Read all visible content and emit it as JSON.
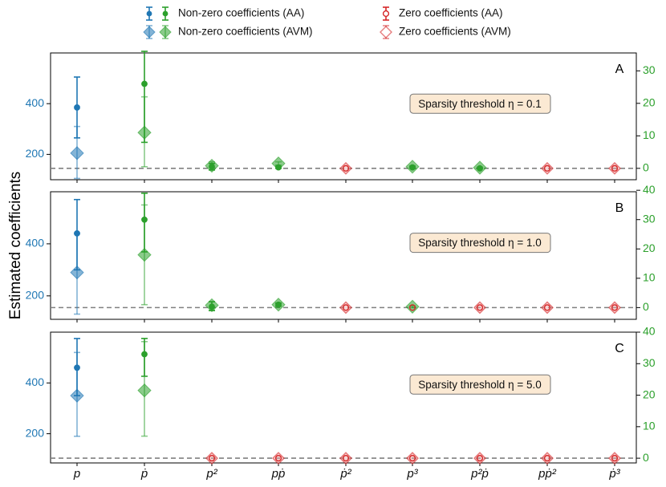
{
  "legend": [
    {
      "label": "Non-zero coefficients (AA)",
      "marker": "circle",
      "colors": [
        "#1f77b4",
        "#2ca02c"
      ],
      "alpha": 1.0
    },
    {
      "label": "Non-zero coefficients (AVM)",
      "marker": "diamond",
      "colors": [
        "#1f77b4",
        "#2ca02c"
      ],
      "alpha": 0.55
    },
    {
      "label": "Zero coefficients (AA)",
      "marker": "open-circle",
      "colors": [
        "#d62728"
      ],
      "alpha": 1.0
    },
    {
      "label": "Zero coefficients (AVM)",
      "marker": "open-diamond",
      "colors": [
        "#d62728"
      ],
      "alpha": 0.55
    }
  ],
  "colors": {
    "left_axis": "#1f77b4",
    "right_axis": "#2ca02c",
    "zero": "#d62728",
    "baseline": "#808080"
  },
  "chart_data": {
    "type": "scatter",
    "ylabel": "Estimated coefficients",
    "categories": [
      "p",
      "ṗ",
      "p²",
      "pṗ",
      "ṗ²",
      "p³",
      "p²ṗ",
      "pṗ²",
      "ṗ³"
    ],
    "category_parts": [
      {
        "base": "p",
        "dot": false,
        "sup": ""
      },
      {
        "base": "p",
        "dot": true,
        "sup": ""
      },
      {
        "base": "p",
        "dot": false,
        "sup": "2"
      },
      {
        "base": "pp",
        "dot": true,
        "sup": ""
      },
      {
        "base": "p",
        "dot": true,
        "sup": "2"
      },
      {
        "base": "p",
        "dot": false,
        "sup": "3"
      },
      {
        "base": "p2p",
        "dot": true,
        "sup": ""
      },
      {
        "base": "pp2",
        "dot": true,
        "sup": ""
      },
      {
        "base": "p",
        "dot": true,
        "sup": "3"
      }
    ],
    "left_axis_categories": [
      "p"
    ],
    "panels": [
      {
        "letter": "A",
        "annotation": "Sparsity threshold η = 0.1",
        "left_ylim": [
          100,
          600
        ],
        "left_ticks": [
          200,
          400
        ],
        "right_ylim": [
          -3.5,
          35.5
        ],
        "right_ticks": [
          0,
          10,
          20,
          30
        ],
        "AA": [
          {
            "v": 385,
            "lo": 265,
            "hi": 505
          },
          {
            "v": 26,
            "lo": 8,
            "hi": 36
          },
          {
            "v": 0.5,
            "lo": -0.5,
            "hi": 1.5
          },
          {
            "v": 0.3,
            "lo": 0,
            "hi": 0.6
          },
          {
            "v": 0,
            "lo": 0,
            "hi": 0,
            "zero": true
          },
          {
            "v": 0.3,
            "lo": 0,
            "hi": 0.6
          },
          {
            "v": 0,
            "lo": 0,
            "hi": 0
          },
          {
            "v": 0,
            "lo": 0,
            "hi": 0,
            "zero": true
          },
          {
            "v": 0,
            "lo": 0,
            "hi": 0,
            "zero": true
          }
        ],
        "AVM": [
          {
            "v": 205,
            "lo": 105,
            "hi": 310
          },
          {
            "v": 11,
            "lo": 0.5,
            "hi": 22
          },
          {
            "v": 0.8,
            "lo": -0.5,
            "hi": 2
          },
          {
            "v": 1.5,
            "lo": 1,
            "hi": 2
          },
          {
            "v": 0,
            "lo": 0,
            "hi": 0,
            "zero": true
          },
          {
            "v": 0.5,
            "lo": 0.2,
            "hi": 0.8
          },
          {
            "v": 0.2,
            "lo": 0,
            "hi": 0.4
          },
          {
            "v": 0,
            "lo": 0,
            "hi": 0,
            "zero": true
          },
          {
            "v": 0,
            "lo": 0,
            "hi": 0,
            "zero": true
          }
        ]
      },
      {
        "letter": "B",
        "annotation": "Sparsity threshold η = 1.0",
        "left_ylim": [
          110,
          600
        ],
        "left_ticks": [
          200,
          400
        ],
        "right_ylim": [
          -4,
          39.5
        ],
        "right_ticks": [
          0,
          10,
          20,
          30,
          40
        ],
        "AA": [
          {
            "v": 440,
            "lo": 300,
            "hi": 570
          },
          {
            "v": 30,
            "lo": 19,
            "hi": 39
          },
          {
            "v": 0.3,
            "lo": -1,
            "hi": 2
          },
          {
            "v": 1,
            "lo": 0.5,
            "hi": 1.5
          },
          {
            "v": 0,
            "lo": 0,
            "hi": 0,
            "zero": true
          },
          {
            "v": 0,
            "lo": 0,
            "hi": 0,
            "zero": true
          },
          {
            "v": 0,
            "lo": 0,
            "hi": 0,
            "zero": true
          },
          {
            "v": 0,
            "lo": 0,
            "hi": 0,
            "zero": true
          },
          {
            "v": 0,
            "lo": 0,
            "hi": 0,
            "zero": true
          }
        ],
        "AVM": [
          {
            "v": 290,
            "lo": 130,
            "hi": 440
          },
          {
            "v": 18,
            "lo": 1,
            "hi": 35
          },
          {
            "v": 0.8,
            "lo": -1,
            "hi": 2
          },
          {
            "v": 1,
            "lo": 0.5,
            "hi": 1.6
          },
          {
            "v": 0,
            "lo": 0,
            "hi": 0,
            "zero": true
          },
          {
            "v": 0.3,
            "lo": 0,
            "hi": 0.6
          },
          {
            "v": 0,
            "lo": 0,
            "hi": 0,
            "zero": true
          },
          {
            "v": 0,
            "lo": 0,
            "hi": 0,
            "zero": true
          },
          {
            "v": 0,
            "lo": 0,
            "hi": 0,
            "zero": true
          }
        ]
      },
      {
        "letter": "C",
        "annotation": "Sparsity threshold η = 5.0",
        "left_ylim": [
          85,
          600
        ],
        "left_ticks": [
          200,
          400
        ],
        "right_ylim": [
          -1.5,
          40
        ],
        "right_ticks": [
          0,
          10,
          20,
          30,
          40
        ],
        "AA": [
          {
            "v": 460,
            "lo": 350,
            "hi": 575
          },
          {
            "v": 33,
            "lo": 26,
            "hi": 38
          },
          {
            "v": 0,
            "lo": 0,
            "hi": 0,
            "zero": true
          },
          {
            "v": 0,
            "lo": 0,
            "hi": 0,
            "zero": true
          },
          {
            "v": 0,
            "lo": 0,
            "hi": 0,
            "zero": true
          },
          {
            "v": 0,
            "lo": 0,
            "hi": 0,
            "zero": true
          },
          {
            "v": 0,
            "lo": 0,
            "hi": 0,
            "zero": true
          },
          {
            "v": 0,
            "lo": 0,
            "hi": 0,
            "zero": true
          },
          {
            "v": 0,
            "lo": 0,
            "hi": 0,
            "zero": true
          }
        ],
        "AVM": [
          {
            "v": 350,
            "lo": 190,
            "hi": 520
          },
          {
            "v": 21.5,
            "lo": 7,
            "hi": 37
          },
          {
            "v": 0,
            "lo": 0,
            "hi": 0,
            "zero": true
          },
          {
            "v": 0,
            "lo": 0,
            "hi": 0,
            "zero": true
          },
          {
            "v": 0,
            "lo": 0,
            "hi": 0,
            "zero": true
          },
          {
            "v": 0,
            "lo": 0,
            "hi": 0,
            "zero": true
          },
          {
            "v": 0,
            "lo": 0,
            "hi": 0,
            "zero": true
          },
          {
            "v": 0,
            "lo": 0,
            "hi": 0,
            "zero": true
          },
          {
            "v": 0,
            "lo": 0,
            "hi": 0,
            "zero": true
          }
        ]
      }
    ]
  }
}
